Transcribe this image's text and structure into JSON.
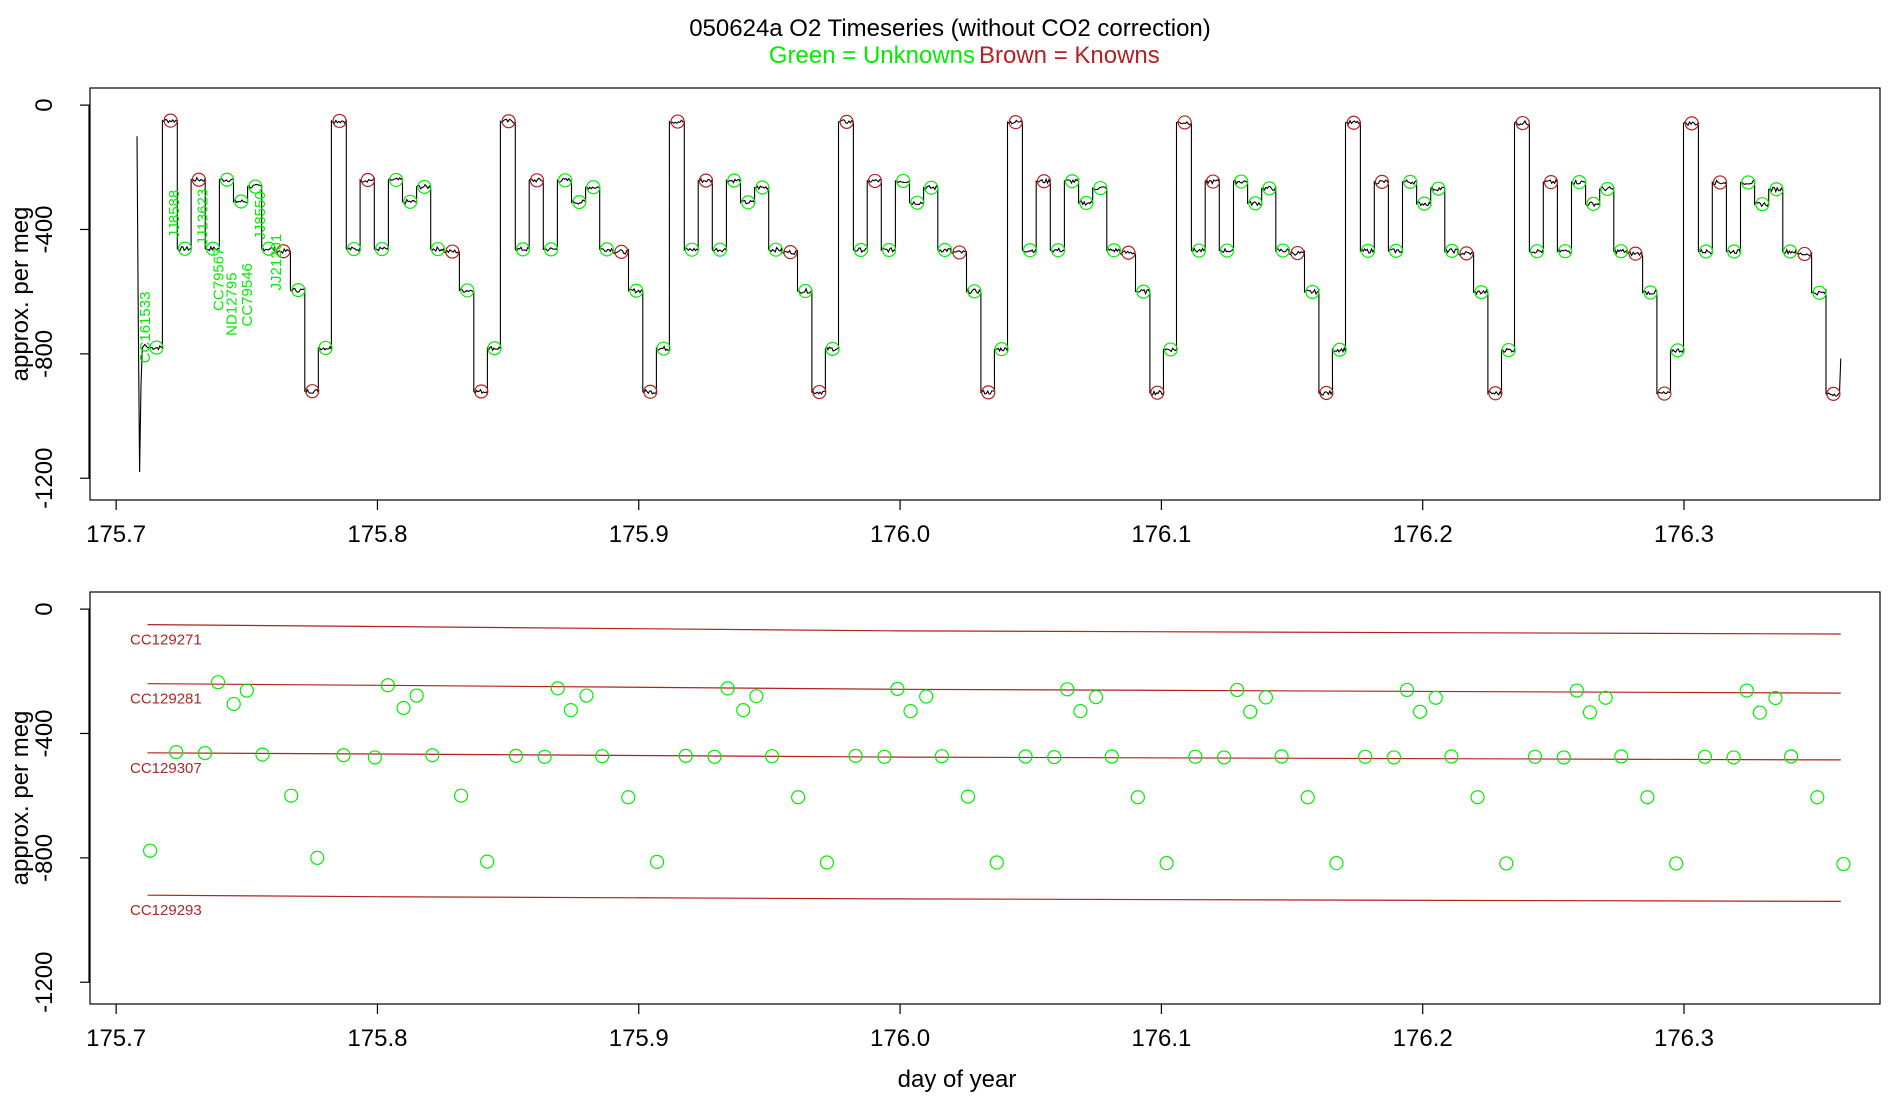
{
  "title": {
    "main": "050624a   O2 Timeseries (without CO2 correction)",
    "legend_green": "Green = Unknowns",
    "legend_brown": "Brown = Knowns"
  },
  "colors": {
    "unknown": "#00ee00",
    "known": "#b22222",
    "trace": "#000000",
    "reference": "#b22222"
  },
  "chart_data": [
    {
      "type": "line",
      "name": "top-panel-timeseries",
      "xlabel": "",
      "ylabel": "approx. per meg",
      "xlim": [
        175.69,
        176.375
      ],
      "ylim": [
        -1270,
        55
      ],
      "xticks": [
        175.7,
        175.8,
        175.9,
        176.0,
        176.1,
        176.2,
        176.3
      ],
      "xtick_labels": [
        "175.7",
        "175.8",
        "175.9",
        "176.0",
        "176.1",
        "176.2",
        "176.3"
      ],
      "yticks": [
        0,
        -400,
        -800,
        -1200
      ],
      "ytick_labels": [
        "0",
        "-400",
        "-800",
        "-1200"
      ],
      "startup_spike": {
        "x": [
          175.708,
          175.7085,
          175.709,
          175.7095,
          175.71,
          175.711,
          175.712
        ],
        "y": [
          -100,
          -700,
          -1180,
          -900,
          -780,
          -770,
          -780
        ]
      },
      "cycle": {
        "period": 0.06468,
        "first_start": 175.7127,
        "n_cycles": 10,
        "steps": [
          {
            "role": "unknown",
            "dx": 0.0,
            "dur": 0.005,
            "y": -780
          },
          {
            "role": "known",
            "dx": 0.005,
            "dur": 0.0057,
            "y": -50
          },
          {
            "role": "unknown",
            "dx": 0.0107,
            "dur": 0.0053,
            "y": -462
          },
          {
            "role": "known",
            "dx": 0.016,
            "dur": 0.0054,
            "y": -240
          },
          {
            "role": "unknown",
            "dx": 0.0214,
            "dur": 0.0054,
            "y": -462
          },
          {
            "role": "unknown",
            "dx": 0.0268,
            "dur": 0.0054,
            "y": -240
          },
          {
            "role": "unknown",
            "dx": 0.0322,
            "dur": 0.0054,
            "y": -310
          },
          {
            "role": "unknown",
            "dx": 0.0376,
            "dur": 0.0054,
            "y": -262
          },
          {
            "role": "unknown",
            "dx": 0.043,
            "dur": 0.005,
            "y": -462
          },
          {
            "role": "known",
            "dx": 0.048,
            "dur": 0.006,
            "y": -470
          },
          {
            "role": "unknown",
            "dx": 0.054,
            "dur": 0.0055,
            "y": -595
          },
          {
            "role": "known",
            "dx": 0.0595,
            "dur": 0.0052,
            "y": -920
          }
        ],
        "note": "cycle levels vary slightly; see level_drift",
        "level_drift_per_day": -15
      },
      "end_x": 176.36,
      "end_y": -815
    },
    {
      "type": "scatter",
      "name": "bottom-panel-samples",
      "xlabel": "day of year",
      "ylabel": "approx. per meg",
      "xlim": [
        175.69,
        176.375
      ],
      "ylim": [
        -1270,
        55
      ],
      "xticks": [
        175.7,
        175.8,
        175.9,
        176.0,
        176.1,
        176.2,
        176.3
      ],
      "xtick_labels": [
        "175.7",
        "175.8",
        "175.9",
        "176.0",
        "176.1",
        "176.2",
        "176.3"
      ],
      "yticks": [
        0,
        -400,
        -800,
        -1200
      ],
      "ytick_labels": [
        "0",
        "-400",
        "-800",
        "-1200"
      ],
      "reference_lines": [
        {
          "label": "CC129271",
          "x": [
            175.712,
            175.8,
            176.0,
            176.36
          ],
          "y": [
            -50,
            -56,
            -70,
            -80
          ]
        },
        {
          "label": "CC129281",
          "x": [
            175.712,
            175.8,
            176.0,
            176.36
          ],
          "y": [
            -240,
            -245,
            -258,
            -270
          ]
        },
        {
          "label": "CC129307",
          "x": [
            175.712,
            175.8,
            176.0,
            176.36
          ],
          "y": [
            -462,
            -466,
            -476,
            -485
          ]
        },
        {
          "label": "CC129293",
          "x": [
            175.712,
            175.8,
            176.0,
            176.36
          ],
          "y": [
            -920,
            -925,
            -932,
            -940
          ]
        }
      ],
      "points": [
        [
          175.713,
          -777
        ],
        [
          175.723,
          -460
        ],
        [
          175.734,
          -463
        ],
        [
          175.739,
          -235
        ],
        [
          175.745,
          -305
        ],
        [
          175.75,
          -262
        ],
        [
          175.756,
          -468
        ],
        [
          175.767,
          -600
        ],
        [
          175.777,
          -800
        ],
        [
          175.787,
          -470
        ],
        [
          175.799,
          -477
        ],
        [
          175.804,
          -245
        ],
        [
          175.81,
          -318
        ],
        [
          175.815,
          -278
        ],
        [
          175.821,
          -470
        ],
        [
          175.832,
          -600
        ],
        [
          175.842,
          -812
        ],
        [
          175.853,
          -472
        ],
        [
          175.864,
          -475
        ],
        [
          175.869,
          -255
        ],
        [
          175.874,
          -325
        ],
        [
          175.88,
          -278
        ],
        [
          175.886,
          -473
        ],
        [
          175.896,
          -605
        ],
        [
          175.907,
          -813
        ],
        [
          175.918,
          -472
        ],
        [
          175.929,
          -475
        ],
        [
          175.934,
          -255
        ],
        [
          175.94,
          -325
        ],
        [
          175.945,
          -280
        ],
        [
          175.951,
          -473
        ],
        [
          175.961,
          -605
        ],
        [
          175.972,
          -815
        ],
        [
          175.983,
          -472
        ],
        [
          175.994,
          -475
        ],
        [
          175.999,
          -257
        ],
        [
          176.004,
          -328
        ],
        [
          176.01,
          -281
        ],
        [
          176.016,
          -473
        ],
        [
          176.026,
          -603
        ],
        [
          176.037,
          -815
        ],
        [
          176.048,
          -474
        ],
        [
          176.059,
          -476
        ],
        [
          176.064,
          -258
        ],
        [
          176.069,
          -328
        ],
        [
          176.075,
          -283
        ],
        [
          176.081,
          -474
        ],
        [
          176.091,
          -605
        ],
        [
          176.102,
          -817
        ],
        [
          176.113,
          -475
        ],
        [
          176.124,
          -477
        ],
        [
          176.129,
          -260
        ],
        [
          176.134,
          -330
        ],
        [
          176.14,
          -284
        ],
        [
          176.146,
          -474
        ],
        [
          176.156,
          -605
        ],
        [
          176.167,
          -817
        ],
        [
          176.178,
          -475
        ],
        [
          176.189,
          -477
        ],
        [
          176.194,
          -260
        ],
        [
          176.199,
          -330
        ],
        [
          176.205,
          -285
        ],
        [
          176.211,
          -474
        ],
        [
          176.221,
          -605
        ],
        [
          176.232,
          -818
        ],
        [
          176.243,
          -475
        ],
        [
          176.254,
          -477
        ],
        [
          176.259,
          -262
        ],
        [
          176.264,
          -332
        ],
        [
          176.27,
          -285
        ],
        [
          176.276,
          -474
        ],
        [
          176.286,
          -605
        ],
        [
          176.297,
          -818
        ],
        [
          176.308,
          -475
        ],
        [
          176.319,
          -477
        ],
        [
          176.324,
          -262
        ],
        [
          176.329,
          -333
        ],
        [
          176.335,
          -286
        ],
        [
          176.341,
          -474
        ],
        [
          176.351,
          -605
        ],
        [
          176.361,
          -820
        ]
      ]
    }
  ],
  "sample_labels": [
    {
      "text": "CC161533",
      "x": 175.713,
      "y": -715
    },
    {
      "text": "JJ8588",
      "x": 175.724,
      "y": -350
    },
    {
      "text": "JJ13623",
      "x": 175.735,
      "y": -360
    },
    {
      "text": "CC79567",
      "x": 175.741,
      "y": -560
    },
    {
      "text": "ND12795",
      "x": 175.746,
      "y": -640
    },
    {
      "text": "CC79546",
      "x": 175.752,
      "y": -610
    },
    {
      "text": "JJ8550",
      "x": 175.757,
      "y": -355
    },
    {
      "text": "JJ21201",
      "x": 175.763,
      "y": -505
    }
  ]
}
